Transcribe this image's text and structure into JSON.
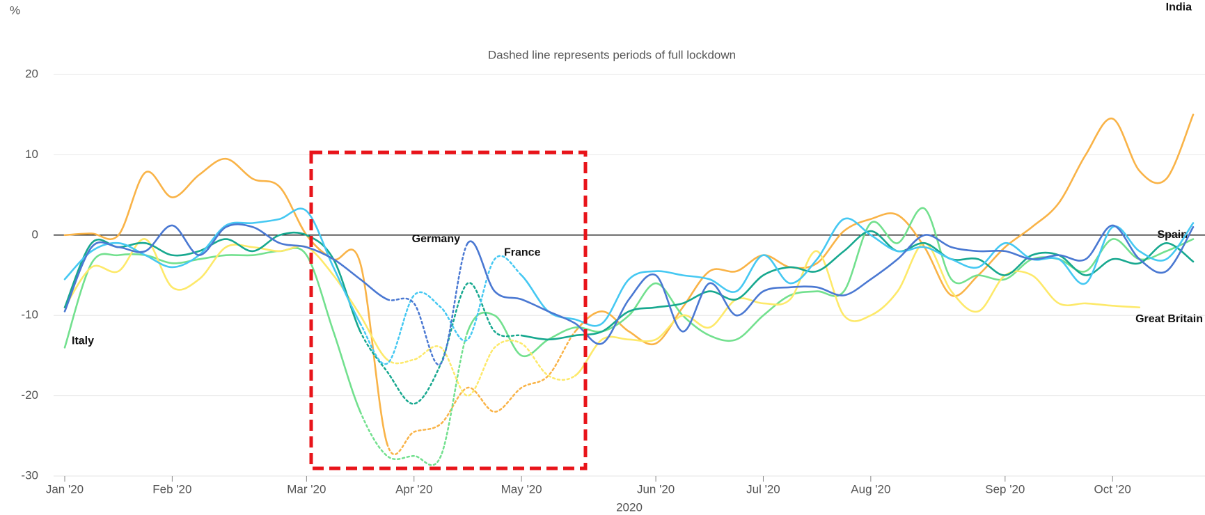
{
  "chart_data": {
    "type": "line",
    "unit_label": "%",
    "subtitle": "Dashed line represents periods of full lockdown",
    "x_label": "2020",
    "categories": [
      "Jan '20",
      null,
      null,
      null,
      "Feb '20",
      null,
      null,
      null,
      null,
      "Mar '20",
      null,
      null,
      null,
      "Apr '20",
      null,
      null,
      null,
      "May '20",
      null,
      null,
      null,
      null,
      "Jun '20",
      null,
      null,
      null,
      "Jul '20",
      null,
      null,
      null,
      "Aug '20",
      null,
      null,
      null,
      null,
      "Sep '20",
      null,
      null,
      null,
      "Oct '20",
      null,
      null,
      null
    ],
    "ylim": [
      -30,
      20
    ],
    "yticks": [
      -30,
      -20,
      -10,
      0,
      10,
      20
    ],
    "grid": true,
    "series": [
      {
        "name": "India",
        "color": "#f9b347",
        "dashed": [
          12,
          19
        ],
        "values": [
          0,
          0.2,
          0,
          7.8,
          4.7,
          7.5,
          9.5,
          7,
          6,
          0,
          -3,
          -3.5,
          -26,
          -24.5,
          -23.5,
          -19,
          -22,
          -19,
          -17.5,
          -12,
          -9.5,
          -12,
          -13.5,
          -9,
          -4.5,
          -4.5,
          -2.5,
          -4,
          -3.5,
          0.5,
          2,
          2.5,
          -1.5,
          -7.5,
          -5,
          -1.5,
          1,
          4,
          10,
          14.5,
          8,
          7,
          15
        ]
      },
      {
        "name": "Italy",
        "color": "#72e08e",
        "dashed": [
          11,
          15
        ],
        "values": [
          -14,
          -3.5,
          -2.5,
          -2.5,
          -3.5,
          -3,
          -2.5,
          -2.5,
          -2,
          -2.5,
          -12,
          -22,
          -27.5,
          -27.5,
          -27.5,
          -12,
          -10,
          -15,
          -13,
          -11.5,
          -12,
          -10,
          -6,
          -10,
          -12.5,
          -13,
          -10,
          -7.5,
          -7,
          -7,
          1.5,
          -1,
          3.3,
          -5.5,
          -5,
          -5.5,
          -3,
          -3,
          -4.5,
          -0.5,
          -3,
          -2,
          -0.5
        ]
      },
      {
        "name": "Great Britain",
        "color": "#fde96a",
        "dashed": [
          12,
          19
        ],
        "values": [
          -9,
          -4,
          -4.5,
          -0.5,
          -6.5,
          -5.5,
          -1.5,
          -1.5,
          -2,
          -1.5,
          -5,
          -10,
          -15.5,
          -15.5,
          -14,
          -20,
          -14,
          -13.5,
          -17.5,
          -17.5,
          -13,
          -13,
          -13,
          -10,
          -11.5,
          -8,
          -8.5,
          -8,
          -2,
          -10,
          -10,
          -7,
          -1,
          -7,
          -9.5,
          -5,
          -5,
          -8.5,
          -8.5,
          -8.8,
          -9,
          null,
          null
        ]
      },
      {
        "name": "Spain",
        "color": "#17a88f",
        "dashed": [
          11,
          17
        ],
        "values": [
          -9,
          -1,
          -1.5,
          -1,
          -2.5,
          -2,
          -0.5,
          -2,
          0,
          0,
          -3,
          -12,
          -17,
          -21,
          -16,
          -6,
          -12,
          -12.5,
          -13,
          -12.5,
          -12,
          -9.5,
          -9,
          -8.5,
          -7,
          -8,
          -5,
          -4,
          -4.5,
          -2,
          0.5,
          -2,
          -1,
          -3,
          -3,
          -5,
          -2.5,
          -2.5,
          -5,
          -3,
          -3.5,
          -1,
          -3.3
        ]
      },
      {
        "name": "France",
        "color": "#45c8f2",
        "dashed": [
          11,
          17
        ],
        "values": [
          -5.5,
          -2,
          -1,
          -2.5,
          -4,
          -2.5,
          1.2,
          1.5,
          2,
          3,
          -4,
          -11,
          -16,
          -7.5,
          -9,
          -13,
          -3,
          -5,
          -9.5,
          -10.5,
          -11,
          -5.5,
          -4.5,
          -5,
          -5.5,
          -7,
          -2.5,
          -6,
          -3,
          2,
          0,
          -2,
          -1.5,
          -3,
          -4,
          -1,
          -3,
          -3,
          -6,
          1,
          -2,
          -3,
          1.5
        ]
      },
      {
        "name": "Germany",
        "color": "#4a78d2",
        "dashed": [
          12,
          15
        ],
        "values": [
          -9.5,
          -1.5,
          -1.5,
          -2,
          1.2,
          -2.5,
          1,
          1,
          -1,
          -1.5,
          -3,
          -5.5,
          -8,
          -8.5,
          -16,
          -1,
          -7,
          -8,
          -9.5,
          -11,
          -13.5,
          -8,
          -5,
          -12,
          -6,
          -10,
          -7,
          -6.5,
          -6.5,
          -7.5,
          -5.5,
          -3,
          0,
          -1.5,
          -2,
          -2,
          -3,
          -2.5,
          -3,
          1.2,
          -3,
          -4.5,
          1
        ]
      }
    ]
  }
}
